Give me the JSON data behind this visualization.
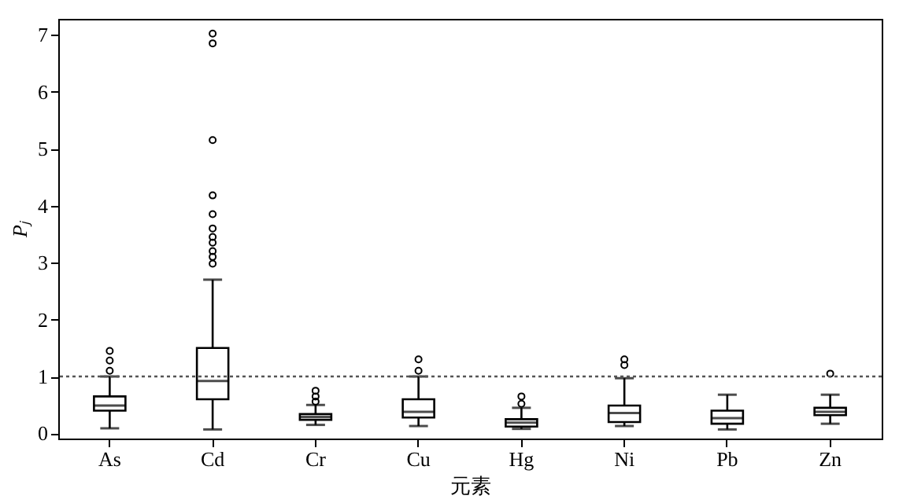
{
  "chart_data": {
    "type": "box",
    "xlabel": "元素",
    "ylabel": "Pⱼ",
    "categories": [
      "As",
      "Cd",
      "Cr",
      "Cu",
      "Hg",
      "Ni",
      "Pb",
      "Zn"
    ],
    "boxes": [
      {
        "low": 0.09,
        "q1": 0.4,
        "median": 0.49,
        "q3": 0.65,
        "high": 1.0,
        "outliers": [
          1.1,
          1.28,
          1.45
        ]
      },
      {
        "low": 0.07,
        "q1": 0.6,
        "median": 0.92,
        "q3": 1.5,
        "high": 2.7,
        "outliers": [
          2.98,
          3.1,
          3.2,
          3.35,
          3.45,
          3.6,
          3.85,
          4.18,
          5.15,
          6.85,
          7.02
        ]
      },
      {
        "low": 0.15,
        "q1": 0.24,
        "median": 0.29,
        "q3": 0.34,
        "high": 0.5,
        "outliers": [
          0.56,
          0.65,
          0.75
        ]
      },
      {
        "low": 0.13,
        "q1": 0.28,
        "median": 0.38,
        "q3": 0.6,
        "high": 1.0,
        "outliers": [
          1.1,
          1.3
        ]
      },
      {
        "low": 0.08,
        "q1": 0.12,
        "median": 0.19,
        "q3": 0.25,
        "high": 0.45,
        "outliers": [
          0.52,
          0.65
        ]
      },
      {
        "low": 0.13,
        "q1": 0.2,
        "median": 0.36,
        "q3": 0.49,
        "high": 0.97,
        "outliers": [
          1.2,
          1.3
        ]
      },
      {
        "low": 0.07,
        "q1": 0.17,
        "median": 0.27,
        "q3": 0.4,
        "high": 0.68
      },
      {
        "low": 0.17,
        "q1": 0.32,
        "median": 0.38,
        "q3": 0.45,
        "high": 0.68,
        "outliers": [
          1.05
        ]
      }
    ],
    "ylim": [
      -0.09,
      7.28
    ],
    "yticks": [
      0,
      1,
      2,
      3,
      4,
      5,
      6,
      7
    ],
    "ref_lines": [
      {
        "axis": "y",
        "value": 1,
        "line_style": "dotted"
      }
    ],
    "marker": "circle",
    "grid": false
  }
}
